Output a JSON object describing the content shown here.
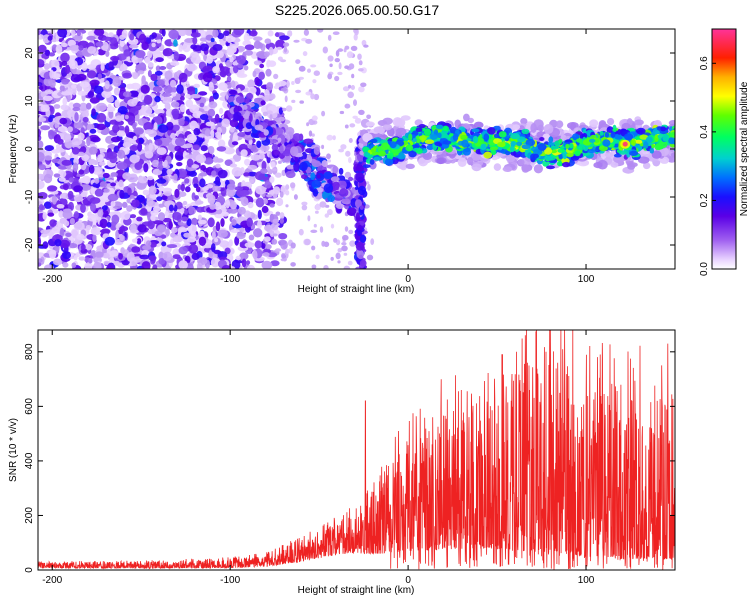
{
  "title": "S225.2026.065.00.50.G17",
  "chart_data": [
    {
      "type": "heatmap",
      "title": "S225.2026.065.00.50.G17",
      "xlabel": "Height of straight line (km)",
      "ylabel": "Frequency (Hz)",
      "xlim": [
        -208,
        150
      ],
      "ylim": [
        -25,
        25
      ],
      "xticks": [
        -200,
        -100,
        0,
        100
      ],
      "yticks": [
        -20,
        -10,
        0,
        10,
        20
      ],
      "regions": [
        {
          "name": "noise-scatter",
          "x": [
            -208,
            -75
          ],
          "y": [
            -25,
            25
          ],
          "level": 0.12
        },
        {
          "name": "descending-streak",
          "x": [
            -100,
            -30
          ],
          "y_start": 10,
          "y_end": -12,
          "level": 0.25
        },
        {
          "name": "steep-drop",
          "x": [
            -30,
            -22
          ],
          "y": [
            -25,
            0
          ],
          "level": 0.2
        },
        {
          "name": "signal-band",
          "x": [
            -25,
            150
          ],
          "y_center": 1,
          "half_width": 4,
          "level": 0.45
        }
      ],
      "peak": {
        "x": 122,
        "y": 1,
        "value": 0.68
      }
    },
    {
      "type": "colorbar",
      "label": "Normalized spectral amplitude",
      "range": [
        0.0,
        0.7
      ],
      "ticks": [
        "0.0",
        "0.2",
        "0.4",
        "0.6"
      ],
      "tick_values": [
        0.0,
        0.2,
        0.4,
        0.6
      ]
    },
    {
      "type": "line",
      "xlabel": "Height of straight line (km)",
      "ylabel": "SNR (10 * v/v)",
      "xlim": [
        -208,
        150
      ],
      "ylim": [
        0,
        880
      ],
      "xticks": [
        -200,
        -100,
        0,
        100
      ],
      "yticks": [
        0,
        200,
        400,
        600,
        800
      ],
      "series": [
        {
          "name": "SNR",
          "color": "#ee2222",
          "envelope": {
            "x": [
              -208,
              -150,
              -100,
              -80,
              -60,
              -45,
              -35,
              -25,
              -15,
              0,
              20,
              40,
              60,
              80,
              100,
              120,
              150
            ],
            "base": [
              15,
              15,
              20,
              30,
              60,
              90,
              110,
              130,
              160,
              200,
              240,
              270,
              280,
              290,
              260,
              240,
              230
            ],
            "amp": [
              15,
              18,
              25,
              35,
              60,
              80,
              100,
              140,
              200,
              260,
              330,
              380,
              420,
              450,
              420,
              400,
              380
            ]
          },
          "spikes": [
            {
              "x": -24,
              "y": 620
            },
            {
              "x": 61,
              "y": 800
            },
            {
              "x": 67,
              "y": 760
            },
            {
              "x": 88,
              "y": 880
            },
            {
              "x": 108,
              "y": 790
            },
            {
              "x": 125,
              "y": 775
            },
            {
              "x": 146,
              "y": 830
            }
          ]
        }
      ]
    }
  ],
  "colors": {
    "axis": "#000000",
    "line": "#ee2222",
    "colormap": [
      "#ffffff",
      "#e2cdfa",
      "#b48ef2",
      "#7e3ef0",
      "#5a00e6",
      "#2a00ff",
      "#0060ff",
      "#00cccc",
      "#00ff66",
      "#66ff00",
      "#ddff00",
      "#ffdd00",
      "#ff8000",
      "#ff0000",
      "#ff3399"
    ]
  }
}
